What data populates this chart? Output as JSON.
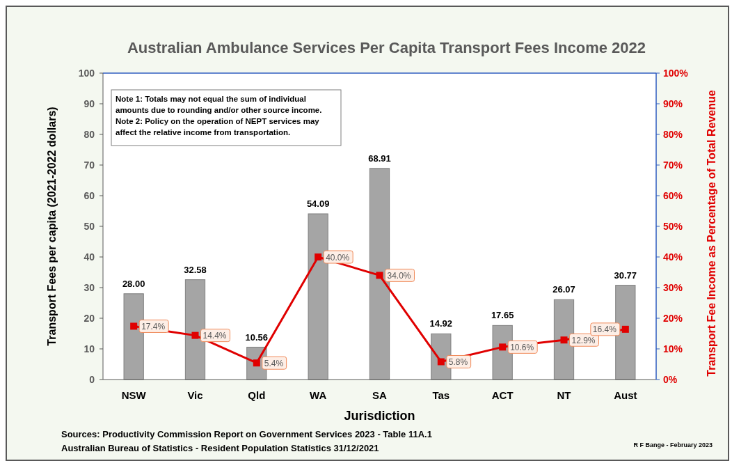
{
  "chart_data": {
    "type": "bar",
    "title": "Australian Ambulance Services Per Capita Transport Fees Income 2022",
    "xlabel": "Jurisdiction",
    "ylabel": "Transport Fees per capita  (2021-2022 dollars)",
    "y2label": "Transport Fee Income as Percentage of Total Revenue",
    "categories": [
      "NSW",
      "Vic",
      "Qld",
      "WA",
      "SA",
      "Tas",
      "ACT",
      "NT",
      "Aust"
    ],
    "series": [
      {
        "color": "#a5a5a5",
        "values": [
          28.0,
          32.58,
          10.56,
          54.09,
          68.91,
          14.92,
          17.65,
          26.07,
          30.77
        ],
        "value_labels": [
          "28.00",
          "32.58",
          "10.56",
          "54.09",
          "68.91",
          "14.92",
          "17.65",
          "26.07",
          "30.77"
        ]
      },
      {
        "type": "line",
        "axis": "y2",
        "color": "#e00000",
        "marker": "square",
        "values": [
          17.4,
          14.4,
          5.4,
          40.0,
          34.0,
          5.8,
          10.6,
          12.9,
          16.4
        ],
        "value_labels": [
          "17.4%",
          "14.4%",
          "5.4%",
          "40.0%",
          "34.0%",
          "5.8%",
          "10.6%",
          "12.9%",
          "16.4%"
        ]
      }
    ],
    "ylim": [
      0,
      100
    ],
    "yticks": [
      0,
      10,
      20,
      30,
      40,
      50,
      60,
      70,
      80,
      90,
      100
    ],
    "y2lim": [
      0,
      100
    ],
    "y2ticks": [
      {
        "value": 0,
        "label": "0%"
      },
      {
        "value": 10,
        "label": "10%"
      },
      {
        "value": 20,
        "label": "20%"
      },
      {
        "value": 30,
        "label": "30%"
      },
      {
        "value": 40,
        "label": "40%"
      },
      {
        "value": 50,
        "label": "50%"
      },
      {
        "value": 60,
        "label": "60%"
      },
      {
        "value": 70,
        "label": "70%"
      },
      {
        "value": 80,
        "label": "80%"
      },
      {
        "value": 90,
        "label": "90%"
      },
      {
        "value": 100,
        "label": "100%"
      }
    ],
    "annotations": [
      "Note 1: Totals may not equal the sum of individual amounts due to rounding and/or other source income.",
      "Note 2: Policy on the operation of NEPT services may affect the relative income from transportation.",
      "Sources: Productivity Commission Report on Government Services 2023 - Table 11A.1",
      "Australian Bureau of Statistics - Resident Population Statistics 31/12/2021",
      "R F Bange - February 2023"
    ]
  }
}
